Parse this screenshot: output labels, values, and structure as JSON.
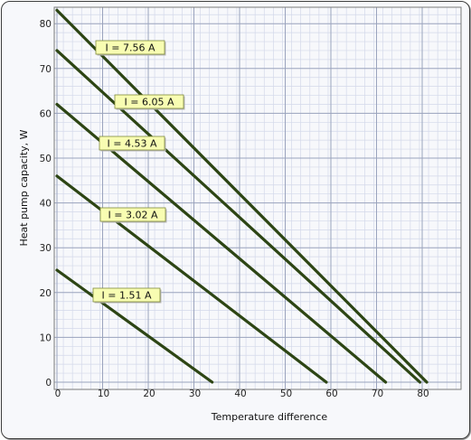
{
  "chart_data": {
    "type": "line",
    "xlabel": "Temperature difference",
    "ylabel": "Heat pump capacity, W",
    "xlim": [
      0,
      80
    ],
    "ylim": [
      0,
      80
    ],
    "x_ticks": [
      "0",
      "10",
      "20",
      "30",
      "40",
      "50",
      "60",
      "70",
      "80"
    ],
    "y_ticks": [
      "0",
      "10",
      "20",
      "30",
      "40",
      "50",
      "60",
      "70",
      "80"
    ],
    "grid": true,
    "line_color": "#2d4514",
    "label_fill": "#f8fdb2",
    "series": [
      {
        "name": "I = 7.56 A",
        "x": [
          0,
          81
        ],
        "y": [
          83,
          0
        ]
      },
      {
        "name": "I = 6.05 A",
        "x": [
          0,
          79.5
        ],
        "y": [
          74,
          0
        ]
      },
      {
        "name": "I = 4.53 A",
        "x": [
          0,
          72
        ],
        "y": [
          62,
          0
        ]
      },
      {
        "name": "I = 3.02 A",
        "x": [
          0,
          59
        ],
        "y": [
          46,
          0
        ]
      },
      {
        "name": "I = 1.51 A",
        "x": [
          0,
          34
        ],
        "y": [
          25,
          0
        ]
      }
    ]
  }
}
